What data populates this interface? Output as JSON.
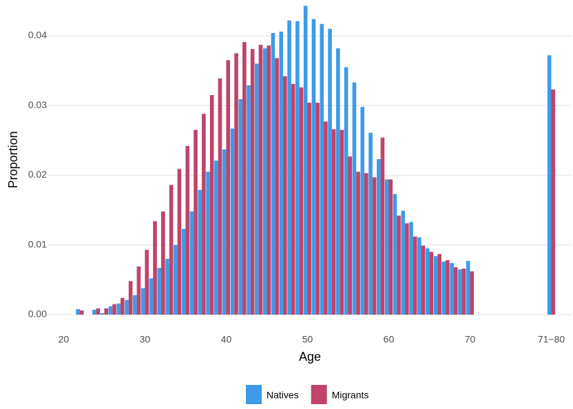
{
  "chart_data": {
    "type": "bar",
    "x_label": "Age",
    "y_label": "Proportion",
    "x": [
      22,
      23,
      24,
      25,
      26,
      27,
      28,
      29,
      30,
      31,
      32,
      33,
      34,
      35,
      36,
      37,
      38,
      39,
      40,
      41,
      42,
      43,
      44,
      45,
      46,
      47,
      48,
      49,
      50,
      51,
      52,
      53,
      54,
      55,
      56,
      57,
      58,
      59,
      60,
      61,
      62,
      63,
      64,
      65,
      66,
      67,
      68,
      69,
      70,
      80
    ],
    "series": [
      {
        "name": "Natives",
        "color": "#3d9be9",
        "values": [
          0.0008,
          0,
          0.0007,
          0.0002,
          0.0012,
          0.0016,
          0.0021,
          0.0028,
          0.0038,
          0.0052,
          0.0067,
          0.008,
          0.01,
          0.0123,
          0.0148,
          0.0179,
          0.0205,
          0.0221,
          0.0237,
          0.0267,
          0.0309,
          0.0329,
          0.036,
          0.0382,
          0.0404,
          0.0406,
          0.0422,
          0.0421,
          0.0443,
          0.0424,
          0.0417,
          0.041,
          0.0382,
          0.0355,
          0.0333,
          0.0298,
          0.0261,
          0.0223,
          0.0194,
          0.0173,
          0.0149,
          0.0133,
          0.0111,
          0.0095,
          0.0084,
          0.0076,
          0.0074,
          0.0065,
          0.0077,
          0.0372
        ]
      },
      {
        "name": "Migrants",
        "color": "#c0436a",
        "values": [
          0.0006,
          0,
          0.0009,
          0.0009,
          0.0015,
          0.0024,
          0.0048,
          0.0069,
          0.0093,
          0.0134,
          0.0148,
          0.0186,
          0.0209,
          0.0242,
          0.0265,
          0.0288,
          0.0315,
          0.0339,
          0.0365,
          0.0375,
          0.0391,
          0.0381,
          0.0387,
          0.0386,
          0.0368,
          0.0342,
          0.0331,
          0.0326,
          0.0304,
          0.0304,
          0.0277,
          0.0266,
          0.0265,
          0.0227,
          0.0205,
          0.0203,
          0.0197,
          0.0254,
          0.0194,
          0.0142,
          0.0131,
          0.0112,
          0.0099,
          0.009,
          0.0087,
          0.0078,
          0.0068,
          0.0066,
          0.0062,
          0.0323
        ]
      }
    ],
    "xlim": [
      18.1,
      82.5
    ],
    "ylim": [
      -0.0005,
      0.0448
    ],
    "xticks": [
      20,
      30,
      40,
      50,
      60,
      70,
      {
        "value": 80,
        "label": "71−80"
      }
    ],
    "yticks": [
      {
        "value": 0,
        "label": "0.00"
      },
      {
        "value": 0.01,
        "label": "0.01"
      },
      {
        "value": 0.02,
        "label": "0.02"
      },
      {
        "value": 0.03,
        "label": "0.03"
      },
      {
        "value": 0.04,
        "label": "0.04"
      }
    ],
    "grid": true
  }
}
